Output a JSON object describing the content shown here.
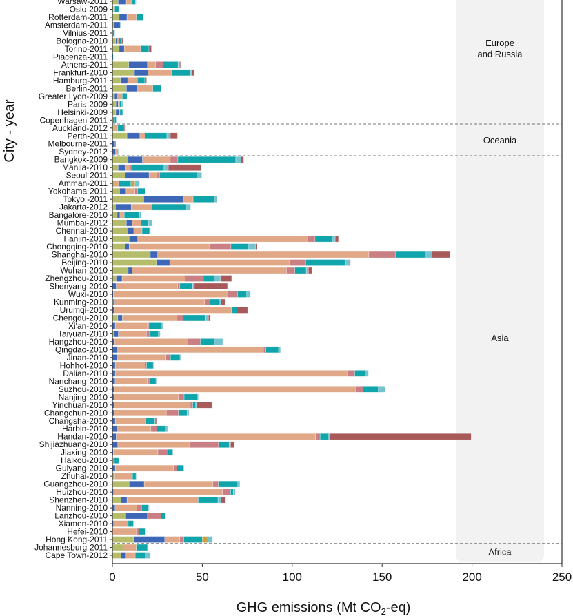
{
  "chart_data": {
    "type": "bar",
    "orientation": "horizontal",
    "stacked": true,
    "xlabel": "GHG emissions (Mt CO2-eq)",
    "ylabel": "City - year",
    "xlim": [
      0,
      250
    ],
    "xticks": [
      0,
      50,
      100,
      150,
      200,
      250
    ],
    "grid": false,
    "legend": "none",
    "segment_colors": [
      "#b6bd6a",
      "#3d66b6",
      "#e0a886",
      "#c97f83",
      "#10a5aa",
      "#c9a043",
      "#76c3d0",
      "#a85a5b"
    ],
    "rows": [
      {
        "label": "Warsaw-2011",
        "values": [
          3.2,
          4.5,
          3.1,
          0,
          2.0,
          0,
          0.4,
          0
        ]
      },
      {
        "label": "Oslo-2009",
        "values": [
          0.5,
          0,
          0.8,
          0,
          2.2,
          0,
          0,
          0
        ]
      },
      {
        "label": "Rotterdam-2011",
        "values": [
          3.8,
          4.3,
          5.2,
          0,
          3.8,
          0,
          0,
          0
        ]
      },
      {
        "label": "Amsterdam-2011",
        "values": [
          0.8,
          3.5,
          0,
          0,
          0,
          0,
          0.5,
          0
        ]
      },
      {
        "label": "Vilnius-2011",
        "values": [
          0.3,
          0,
          0,
          0,
          1.0,
          0,
          0,
          0
        ]
      },
      {
        "label": "Bologna-2010",
        "values": [
          1.8,
          0.8,
          1.0,
          0,
          1.7,
          0,
          0,
          0.6
        ]
      },
      {
        "label": "Torino-2011",
        "values": [
          3.8,
          2.8,
          9.1,
          0,
          4.6,
          0,
          0,
          1.4
        ]
      },
      {
        "label": "Piacenza-2011",
        "values": [
          0,
          0,
          0,
          0,
          0.5,
          0,
          0,
          0
        ]
      },
      {
        "label": "Athens-2011",
        "values": [
          9.1,
          10.4,
          4.5,
          4.2,
          8.3,
          0,
          0.8,
          0.6
        ]
      },
      {
        "label": "Frankfurt-2010",
        "values": [
          12.3,
          7.5,
          13.2,
          0,
          10.4,
          0,
          0.5,
          1.5
        ]
      },
      {
        "label": "Hamburg-2011",
        "values": [
          4.5,
          4.0,
          5.4,
          0,
          4.1,
          0,
          0.4,
          0.6
        ]
      },
      {
        "label": "Berlin-2011",
        "values": [
          7.8,
          6.0,
          8.7,
          0,
          4.7,
          0,
          0,
          0
        ]
      },
      {
        "label": "Greater Lyon-2009",
        "values": [
          1.2,
          1.2,
          3.1,
          0,
          2.6,
          0,
          0,
          0
        ]
      },
      {
        "label": "Paris-2009",
        "values": [
          2.0,
          1.2,
          0.8,
          0,
          1.0,
          0,
          0.8,
          0
        ]
      },
      {
        "label": "Helsinki-2009",
        "values": [
          1.9,
          1.8,
          0.5,
          0,
          1.5,
          0,
          0,
          0
        ]
      },
      {
        "label": "Copenhagen-2011",
        "values": [
          0.4,
          0.5,
          0.3,
          0,
          0.9,
          0,
          0.2,
          0
        ]
      },
      {
        "label": "Auckland-2012",
        "values": [
          0.6,
          0.4,
          2.0,
          0,
          3.6,
          0,
          0,
          0.8
        ]
      },
      {
        "label": "Perth-2011",
        "values": [
          8.1,
          7.2,
          2.9,
          0,
          12.1,
          0,
          1.9,
          4.0
        ]
      },
      {
        "label": "Melbourne-2011",
        "values": [
          0,
          1.5,
          0,
          0,
          0.4,
          0,
          0,
          0
        ]
      },
      {
        "label": "Sydney-2012",
        "values": [
          0,
          1.8,
          1.4,
          0,
          0,
          0,
          0.6,
          0
        ]
      },
      {
        "label": "Bangkok-2009",
        "values": [
          8.6,
          8.1,
          15.5,
          4.2,
          32.2,
          0,
          2.9,
          1.5
        ]
      },
      {
        "label": "Manila-2010",
        "values": [
          3.2,
          4.1,
          2.6,
          1.0,
          17.8,
          0,
          2.4,
          18.2
        ]
      },
      {
        "label": "Seoul-2011",
        "values": [
          7.2,
          13.2,
          4.5,
          1.3,
          20.8,
          0,
          2.7,
          0
        ]
      },
      {
        "label": "Amman-2011",
        "values": [
          0.5,
          0.4,
          2.6,
          0,
          6.8,
          2.2,
          2.6,
          0
        ]
      },
      {
        "label": "Yokohama-2011",
        "values": [
          4.0,
          3.6,
          4.9,
          1.5,
          4.2,
          0,
          0,
          0
        ]
      },
      {
        "label": "Tokyo -2011",
        "values": [
          17.4,
          22.3,
          5.2,
          0,
          11.8,
          0,
          1.5,
          0
        ]
      },
      {
        "label": "Jakarta-2012",
        "values": [
          1.7,
          8.8,
          11.1,
          0,
          19.7,
          0,
          2.2,
          0
        ]
      },
      {
        "label": "Bangalore-2010",
        "values": [
          2.7,
          1.5,
          2.4,
          0,
          8.4,
          0,
          0.9,
          0.3
        ]
      },
      {
        "label": "Mumbai-2012",
        "values": [
          7.8,
          3.3,
          4.9,
          0,
          4.1,
          0,
          2.2,
          0
        ]
      },
      {
        "label": "Chennai-2010",
        "values": [
          8.2,
          3.7,
          4.6,
          0,
          4.2,
          0,
          0.5,
          0
        ]
      },
      {
        "label": "Tianjin-2010",
        "values": [
          9.3,
          4.8,
          94.5,
          4.1,
          9.6,
          0,
          1.6,
          1.8
        ]
      },
      {
        "label": "Chongqing-2010",
        "values": [
          7.0,
          2.3,
          44.5,
          12.1,
          9.9,
          0,
          3.8,
          0.7
        ]
      },
      {
        "label": "Shanghai-2010",
        "values": [
          21.1,
          4.1,
          117.4,
          14.8,
          17.0,
          0,
          3.4,
          9.9
        ]
      },
      {
        "label": "Beijing-2010",
        "values": [
          24.5,
          7.4,
          66.4,
          9.2,
          22.3,
          0,
          2.3,
          0.3
        ]
      },
      {
        "label": "Wuhan-2010",
        "values": [
          8.8,
          2.2,
          85.8,
          4.7,
          6.3,
          0,
          1.2,
          1.9
        ]
      },
      {
        "label": "Zhengzhou-2010",
        "values": [
          2.1,
          3.3,
          35.1,
          10.1,
          5.9,
          0,
          3.6,
          6.2
        ]
      },
      {
        "label": "Shenyang-2010",
        "values": [
          0,
          2.1,
          34.2,
          1.2,
          7.1,
          0,
          1.0,
          18.4
        ]
      },
      {
        "label": "Wuxi-2010",
        "values": [
          0,
          0.5,
          63.2,
          5.9,
          5.1,
          0,
          2.1,
          0
        ]
      },
      {
        "label": "Kunming-2010",
        "values": [
          0.4,
          1.0,
          49.9,
          3.0,
          5.5,
          0,
          0.5,
          2.6
        ]
      },
      {
        "label": "Urumqi-2010",
        "values": [
          0,
          1.1,
          65.2,
          0,
          2.9,
          0,
          0,
          6.0
        ]
      },
      {
        "label": "Chengdu-2010",
        "values": [
          3.0,
          2.5,
          30.5,
          3.4,
          12.5,
          0,
          1.5,
          1.1
        ]
      },
      {
        "label": "Xi'an-2010",
        "values": [
          0,
          1.6,
          17.9,
          0.8,
          6.7,
          0,
          1.0,
          0
        ]
      },
      {
        "label": "Taiyuan-2010",
        "values": [
          1.0,
          2.3,
          15.6,
          1.8,
          4.9,
          0,
          1.0,
          0
        ]
      },
      {
        "label": "Hangzhou-2010",
        "values": [
          0,
          1.2,
          40.7,
          7.0,
          7.8,
          0,
          4.7,
          0
        ]
      },
      {
        "label": "Qingdao-2010",
        "values": [
          0,
          2.5,
          81.5,
          1.4,
          7.0,
          0,
          1.1,
          0
        ]
      },
      {
        "label": "Jinan-2010",
        "values": [
          0,
          2.7,
          27.1,
          2.5,
          5.3,
          0,
          0.8,
          0
        ]
      },
      {
        "label": "Hohhot-2010",
        "values": [
          0,
          1.6,
          16.6,
          0.8,
          3.7,
          0,
          0.4,
          0
        ]
      },
      {
        "label": "Dalian-2010",
        "values": [
          0,
          1.6,
          129.2,
          4.0,
          5.8,
          0,
          1.8,
          0
        ]
      },
      {
        "label": "Nanchang-2010",
        "values": [
          0,
          1.5,
          17.9,
          1.0,
          3.8,
          0,
          0.7,
          0
        ]
      },
      {
        "label": "Suzhou-2010",
        "values": [
          0,
          1.1,
          134.0,
          4.2,
          8.6,
          0,
          3.7,
          0
        ]
      },
      {
        "label": "Nanjing-2010",
        "values": [
          0,
          1.1,
          35.6,
          3.2,
          7.1,
          0,
          0.8,
          0
        ]
      },
      {
        "label": "Yinchuan-2010",
        "values": [
          0,
          1.1,
          42.2,
          1.4,
          1.6,
          0,
          0.5,
          8.5
        ]
      },
      {
        "label": "Changchun-2010",
        "values": [
          0,
          1.1,
          28.9,
          6.7,
          4.8,
          0,
          1.1,
          0
        ]
      },
      {
        "label": "Changsha-2010",
        "values": [
          0,
          1.6,
          17.0,
          0,
          4.7,
          0,
          0.5,
          0.7
        ]
      },
      {
        "label": "Harbin-2010",
        "values": [
          0,
          2.6,
          18.8,
          3.4,
          4.5,
          0,
          1.4,
          0
        ]
      },
      {
        "label": "Handan-2010",
        "values": [
          0,
          2.1,
          110.9,
          2.5,
          4.4,
          0,
          0.7,
          78.9
        ]
      },
      {
        "label": "Shijiazhuang-2010",
        "values": [
          0,
          3.0,
          39.7,
          16.3,
          5.9,
          0,
          0.8,
          1.9
        ]
      },
      {
        "label": "Jiaxing-2010",
        "values": [
          0,
          0.5,
          24.8,
          5.6,
          2.3,
          0,
          0.5,
          0
        ]
      },
      {
        "label": "Haikou-2010",
        "values": [
          0.4,
          0.4,
          0.3,
          0,
          2.4,
          0,
          0,
          0
        ]
      },
      {
        "label": "Guiyang-2010",
        "values": [
          0,
          1.6,
          32.5,
          1.8,
          3.8,
          0,
          0,
          0
        ]
      },
      {
        "label": "Zhuhai-2010",
        "values": [
          0.5,
          0.8,
          9.9,
          0,
          1.9,
          0,
          0.3,
          0
        ]
      },
      {
        "label": "Guangzhou-2010",
        "values": [
          9.3,
          8.4,
          38.2,
          3.0,
          10.4,
          0,
          1.6,
          0
        ]
      },
      {
        "label": "Huizhou-2010",
        "values": [
          0,
          0.7,
          60.5,
          4.5,
          1.5,
          0,
          1.2,
          0
        ]
      },
      {
        "label": "Shenzhen-2010",
        "values": [
          4.9,
          3.2,
          39.6,
          0,
          11.0,
          0,
          1.8,
          2.5
        ]
      },
      {
        "label": "Nanning-2010",
        "values": [
          0,
          1.5,
          12.2,
          2.5,
          3.8,
          0,
          0.5,
          0
        ]
      },
      {
        "label": "Lanzhou-2010",
        "values": [
          7.4,
          12.1,
          0,
          7.5,
          2.6,
          0,
          0,
          0
        ]
      },
      {
        "label": "Xiamen-2010",
        "values": [
          0,
          0.7,
          8.1,
          0,
          2.9,
          0,
          0,
          0
        ]
      },
      {
        "label": "Hefei-2010",
        "values": [
          0,
          0,
          13.2,
          1.6,
          3.4,
          0,
          0.4,
          0
        ]
      },
      {
        "label": "Hong Kong-2011",
        "values": [
          11.8,
          17.3,
          8.4,
          2.2,
          10.3,
          3.0,
          2.7,
          0
        ]
      },
      {
        "label": "Johannesburg-2011",
        "values": [
          6.0,
          0,
          7.3,
          0,
          6.2,
          0,
          0,
          0
        ]
      },
      {
        "label": "Cape Town-2012",
        "values": [
          4.7,
          2.9,
          5.1,
          0,
          5.6,
          0,
          2.9,
          0
        ]
      }
    ],
    "regions": [
      {
        "label": [
          "Europe",
          "and Russia"
        ],
        "first_row": 0,
        "last_row": 15
      },
      {
        "label": [
          "Oceania"
        ],
        "first_row": 16,
        "last_row": 19
      },
      {
        "label": [
          "Asia"
        ],
        "first_row": 20,
        "last_row": 68
      },
      {
        "label": [
          "Africa"
        ],
        "first_row": 69,
        "last_row": 70
      }
    ],
    "region_panel": {
      "x_range": [
        191,
        240
      ],
      "color": "#f2f2f2"
    }
  }
}
